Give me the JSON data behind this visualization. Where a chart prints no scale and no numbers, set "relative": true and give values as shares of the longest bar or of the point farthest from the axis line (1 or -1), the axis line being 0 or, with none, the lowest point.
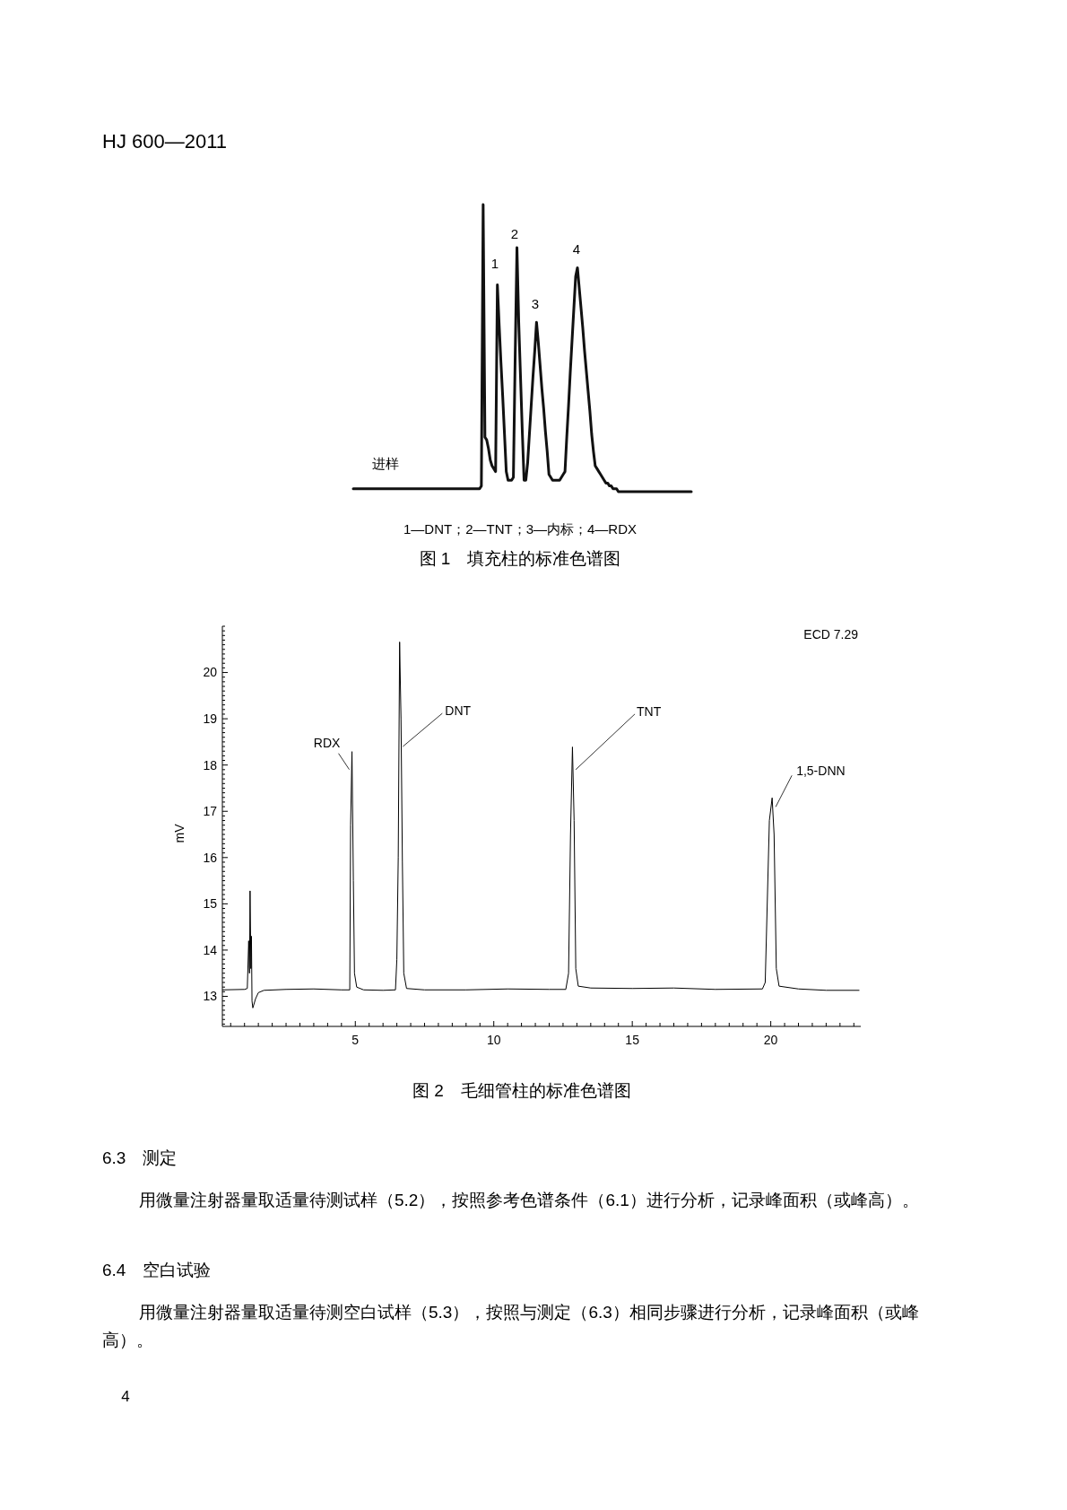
{
  "chart_data": [
    {
      "type": "line",
      "title": "图 1　填充柱的标准色谱图",
      "subtitle": "1—DNT；2—TNT；3—内标；4—RDX",
      "annotations": [
        "HJ 600—2011",
        "1",
        "2",
        "3",
        "4",
        "进样"
      ],
      "relative": true,
      "color": "#111111",
      "categories": [
        null,
        null,
        null,
        null,
        null,
        null,
        null,
        null,
        null,
        null,
        null,
        null,
        null,
        null,
        null,
        null,
        null,
        null,
        null,
        null,
        null,
        null,
        null,
        null,
        null,
        null,
        null,
        null,
        null,
        null,
        null,
        null,
        null,
        null,
        null,
        null,
        null,
        null,
        null,
        null,
        null,
        null,
        null,
        null,
        null,
        null,
        null,
        null,
        null,
        null,
        null,
        null,
        null,
        null,
        null,
        null,
        null,
        null,
        null,
        null,
        null,
        null,
        null,
        null,
        null,
        null,
        null,
        null,
        null,
        null,
        null,
        null,
        null,
        null,
        null,
        null,
        null,
        null,
        null,
        null,
        null,
        null,
        null,
        null,
        null,
        null,
        null,
        null,
        null,
        null,
        null,
        null,
        null,
        null,
        null,
        null,
        null,
        null,
        null,
        null,
        null,
        null,
        null,
        null,
        null,
        null,
        null,
        null,
        null,
        null,
        null,
        null,
        null,
        null,
        null,
        null,
        null,
        null,
        null,
        null,
        null,
        null,
        null,
        null,
        null,
        null,
        null,
        null,
        null,
        null,
        null,
        null,
        null,
        null,
        null,
        null,
        null,
        null,
        null,
        null,
        null,
        null,
        null,
        null,
        null,
        null,
        null,
        null,
        null,
        null,
        null,
        null,
        null,
        null,
        null,
        null,
        null,
        null,
        null,
        null,
        null,
        null,
        null,
        null,
        null,
        null,
        null,
        null,
        null,
        null,
        null,
        null,
        null,
        null,
        null,
        null,
        null,
        null,
        null,
        null,
        null,
        null,
        null,
        null,
        null,
        null,
        null,
        null,
        null,
        null,
        null
      ],
      "values": [
        0.01,
        0.01,
        0.01,
        0.01,
        0.01,
        0.01,
        0.01,
        0.01,
        0.01,
        0.01,
        0.01,
        0.01,
        0.01,
        0.01,
        0.01,
        0.01,
        0.01,
        0.01,
        0.01,
        0.01,
        0.01,
        0.01,
        0.01,
        0.01,
        0.01,
        0.01,
        0.01,
        0.01,
        0.01,
        0.01,
        0.01,
        0.01,
        0.01,
        0.01,
        0.01,
        0.01,
        0.01,
        0.01,
        0.01,
        0.01,
        0.01,
        0.01,
        0.01,
        0.01,
        0.01,
        0.01,
        0.01,
        0.01,
        0.01,
        0.01,
        0.01,
        0.01,
        0.01,
        0.01,
        0.01,
        0.01,
        0.01,
        0.01,
        0.01,
        0.01,
        0.01,
        0.01,
        0.01,
        0.01,
        0.01,
        0.01,
        0.01,
        0.01,
        0.01,
        0.01,
        0.01,
        0.01,
        0.02,
        1,
        0.19,
        0.18,
        0.15,
        0.11,
        0.09,
        0.08,
        0.07,
        0.72,
        0.58,
        0.45,
        0.33,
        0.2,
        0.07,
        0.04,
        0.04,
        0.04,
        0.05,
        0.47,
        0.85,
        0.59,
        0.4,
        0.21,
        0.04,
        0.04,
        0.1,
        0.2,
        0.3,
        0.4,
        0.49,
        0.59,
        0.52,
        0.44,
        0.36,
        0.29,
        0.21,
        0.14,
        0.06,
        0.05,
        0.04,
        0.04,
        0.04,
        0.04,
        0.04,
        0.05,
        0.06,
        0.07,
        0.19,
        0.3,
        0.42,
        0.53,
        0.64,
        0.75,
        0.78,
        0.71,
        0.64,
        0.57,
        0.49,
        0.42,
        0.35,
        0.28,
        0.2,
        0.14,
        0.09,
        0.08,
        0.07,
        0.06,
        0.05,
        0.04,
        0.03,
        0.03,
        0.02,
        0.02,
        0.01,
        0.01,
        0.01,
        0,
        0,
        0,
        0,
        0,
        0,
        0,
        0,
        0,
        0,
        0,
        0,
        0,
        0,
        0,
        0,
        0,
        0,
        0,
        0,
        0,
        0,
        0,
        0,
        0,
        0,
        0,
        0,
        0,
        0,
        0,
        0,
        0,
        0,
        0,
        0,
        0,
        0,
        0,
        0,
        0,
        0
      ]
    },
    {
      "type": "line",
      "title": "图 2　毛细管柱的标准色谱图",
      "ylabel": "mV",
      "annotations": [
        "ECD 7.29",
        {
          "text": "RDX",
          "x": 4.88,
          "y": 18.29
        },
        {
          "text": "DNT",
          "x": 6.62,
          "y": 18.4
        },
        {
          "text": "TNT",
          "x": 12.86,
          "y": 17.9
        },
        {
          "text": "1,5-DNN",
          "x": 20.05,
          "y": 17.29
        },
        "6.3　测定",
        "用微量注射器量取适量待测试样（5.2），按照参考色谱条件（6.1）进行分析，记录峰面积（或峰高）。",
        "6.4　空白试验",
        "用微量注射器量取适量待测空白试样（5.3），按照与测定（6.3）相同步骤进行分析，记录峰面积（或峰高）。",
        "4"
      ],
      "series": [
        {
          "color": "#000000",
          "x": [
            0.2,
            1.0,
            1.1,
            1.15,
            1.18,
            1.2,
            1.23,
            1.25,
            1.27,
            1.3,
            1.4,
            1.5,
            1.7,
            2.5,
            3.5,
            4.5,
            4.8,
            4.83,
            4.88,
            4.93,
            4.97,
            5.05,
            5.3,
            6.0,
            6.45,
            6.5,
            6.55,
            6.6,
            6.65,
            6.7,
            6.75,
            6.85,
            7.5,
            9,
            10.5,
            12,
            12.6,
            12.7,
            12.77,
            12.84,
            12.9,
            12.96,
            13.05,
            13.5,
            15,
            16.5,
            18,
            19.7,
            19.8,
            19.95,
            20.05,
            20.12,
            20.2,
            20.3,
            21,
            22,
            23.2
          ],
          "values": [
            13.14,
            13.15,
            13.17,
            14.2,
            13.5,
            15.28,
            13.6,
            14.3,
            12.9,
            12.75,
            12.95,
            13.08,
            13.13,
            13.15,
            13.16,
            13.14,
            13.14,
            16.7,
            18.29,
            15.5,
            13.5,
            13.2,
            13.14,
            13.13,
            13.14,
            13.8,
            16.0,
            20.66,
            19.0,
            15.9,
            13.5,
            13.17,
            13.14,
            13.14,
            13.16,
            13.15,
            13.15,
            13.5,
            16.5,
            18.39,
            16.8,
            13.6,
            13.22,
            13.18,
            13.17,
            13.18,
            13.15,
            13.16,
            13.3,
            16.8,
            17.29,
            16.5,
            13.6,
            13.22,
            13.16,
            13.13,
            13.13
          ]
        }
      ],
      "xlim": [
        0.2,
        23.25
      ],
      "xticks": [
        {
          "value": 0.5,
          "label": null
        },
        {
          "value": 1,
          "label": null
        },
        {
          "value": 1.5,
          "label": null
        },
        {
          "value": 2,
          "label": null
        },
        {
          "value": 2.5,
          "label": null
        },
        {
          "value": 3,
          "label": null
        },
        {
          "value": 3.5,
          "label": null
        },
        {
          "value": 4,
          "label": null
        },
        {
          "value": 4.5,
          "label": null
        },
        5,
        {
          "value": 5.5,
          "label": null
        },
        {
          "value": 6,
          "label": null
        },
        {
          "value": 6.5,
          "label": null
        },
        {
          "value": 7,
          "label": null
        },
        {
          "value": 7.5,
          "label": null
        },
        {
          "value": 8,
          "label": null
        },
        {
          "value": 8.5,
          "label": null
        },
        {
          "value": 9,
          "label": null
        },
        {
          "value": 9.5,
          "label": null
        },
        10,
        {
          "value": 10.5,
          "label": null
        },
        {
          "value": 11,
          "label": null
        },
        {
          "value": 11.5,
          "label": null
        },
        {
          "value": 12,
          "label": null
        },
        {
          "value": 12.5,
          "label": null
        },
        {
          "value": 13,
          "label": null
        },
        {
          "value": 13.5,
          "label": null
        },
        {
          "value": 14,
          "label": null
        },
        {
          "value": 14.5,
          "label": null
        },
        15,
        {
          "value": 15.5,
          "label": null
        },
        {
          "value": 16,
          "label": null
        },
        {
          "value": 16.5,
          "label": null
        },
        {
          "value": 17,
          "label": null
        },
        {
          "value": 17.5,
          "label": null
        },
        {
          "value": 18,
          "label": null
        },
        {
          "value": 18.5,
          "label": null
        },
        {
          "value": 19,
          "label": null
        },
        {
          "value": 19.5,
          "label": null
        },
        20,
        {
          "value": 20.5,
          "label": null
        },
        {
          "value": 21,
          "label": null
        },
        {
          "value": 21.5,
          "label": null
        },
        {
          "value": 22,
          "label": null
        },
        {
          "value": 22.5,
          "label": null
        },
        {
          "value": 23,
          "label": null
        }
      ],
      "ylim": [
        12.35,
        21.0
      ],
      "yticks": [
        {
          "value": 12.4,
          "label": null
        },
        {
          "value": 12.5,
          "label": null
        },
        {
          "value": 12.6,
          "label": null
        },
        {
          "value": 12.7,
          "label": null
        },
        {
          "value": 12.8,
          "label": null
        },
        {
          "value": 12.9,
          "label": null
        },
        13,
        {
          "value": 13.1,
          "label": null
        },
        {
          "value": 13.2,
          "label": null
        },
        {
          "value": 13.3,
          "label": null
        },
        {
          "value": 13.4,
          "label": null
        },
        {
          "value": 13.5,
          "label": null
        },
        {
          "value": 13.6,
          "label": null
        },
        {
          "value": 13.7,
          "label": null
        },
        {
          "value": 13.8,
          "label": null
        },
        {
          "value": 13.9,
          "label": null
        },
        14,
        {
          "value": 14.1,
          "label": null
        },
        {
          "value": 14.2,
          "label": null
        },
        {
          "value": 14.3,
          "label": null
        },
        {
          "value": 14.4,
          "label": null
        },
        {
          "value": 14.5,
          "label": null
        },
        {
          "value": 14.6,
          "label": null
        },
        {
          "value": 14.7,
          "label": null
        },
        {
          "value": 14.8,
          "label": null
        },
        {
          "value": 14.9,
          "label": null
        },
        15,
        {
          "value": 15.1,
          "label": null
        },
        {
          "value": 15.2,
          "label": null
        },
        {
          "value": 15.3,
          "label": null
        },
        {
          "value": 15.4,
          "label": null
        },
        {
          "value": 15.5,
          "label": null
        },
        {
          "value": 15.6,
          "label": null
        },
        {
          "value": 15.7,
          "label": null
        },
        {
          "value": 15.8,
          "label": null
        },
        {
          "value": 15.9,
          "label": null
        },
        16,
        {
          "value": 16.1,
          "label": null
        },
        {
          "value": 16.2,
          "label": null
        },
        {
          "value": 16.3,
          "label": null
        },
        {
          "value": 16.4,
          "label": null
        },
        {
          "value": 16.5,
          "label": null
        },
        {
          "value": 16.6,
          "label": null
        },
        {
          "value": 16.7,
          "label": null
        },
        {
          "value": 16.8,
          "label": null
        },
        {
          "value": 16.9,
          "label": null
        },
        17,
        {
          "value": 17.1,
          "label": null
        },
        {
          "value": 17.2,
          "label": null
        },
        {
          "value": 17.3,
          "label": null
        },
        {
          "value": 17.4,
          "label": null
        },
        {
          "value": 17.5,
          "label": null
        },
        {
          "value": 17.6,
          "label": null
        },
        {
          "value": 17.7,
          "label": null
        },
        {
          "value": 17.8,
          "label": null
        },
        {
          "value": 17.9,
          "label": null
        },
        18,
        {
          "value": 18.1,
          "label": null
        },
        {
          "value": 18.2,
          "label": null
        },
        {
          "value": 18.3,
          "label": null
        },
        {
          "value": 18.4,
          "label": null
        },
        {
          "value": 18.5,
          "label": null
        },
        {
          "value": 18.6,
          "label": null
        },
        {
          "value": 18.7,
          "label": null
        },
        {
          "value": 18.8,
          "label": null
        },
        {
          "value": 18.9,
          "label": null
        },
        19,
        {
          "value": 19.1,
          "label": null
        },
        {
          "value": 19.2,
          "label": null
        },
        {
          "value": 19.3,
          "label": null
        },
        {
          "value": 19.4,
          "label": null
        },
        {
          "value": 19.5,
          "label": null
        },
        {
          "value": 19.6,
          "label": null
        },
        {
          "value": 19.7,
          "label": null
        },
        {
          "value": 19.8,
          "label": null
        },
        {
          "value": 19.9,
          "label": null
        },
        20,
        {
          "value": 20.1,
          "label": null
        },
        {
          "value": 20.2,
          "label": null
        },
        {
          "value": 20.3,
          "label": null
        },
        {
          "value": 20.4,
          "label": null
        },
        {
          "value": 20.5,
          "label": null
        },
        {
          "value": 20.6,
          "label": null
        },
        {
          "value": 20.7,
          "label": null
        },
        {
          "value": 20.8,
          "label": null
        },
        {
          "value": 20.9,
          "label": null
        },
        {
          "value": 21,
          "label": null
        }
      ]
    }
  ]
}
